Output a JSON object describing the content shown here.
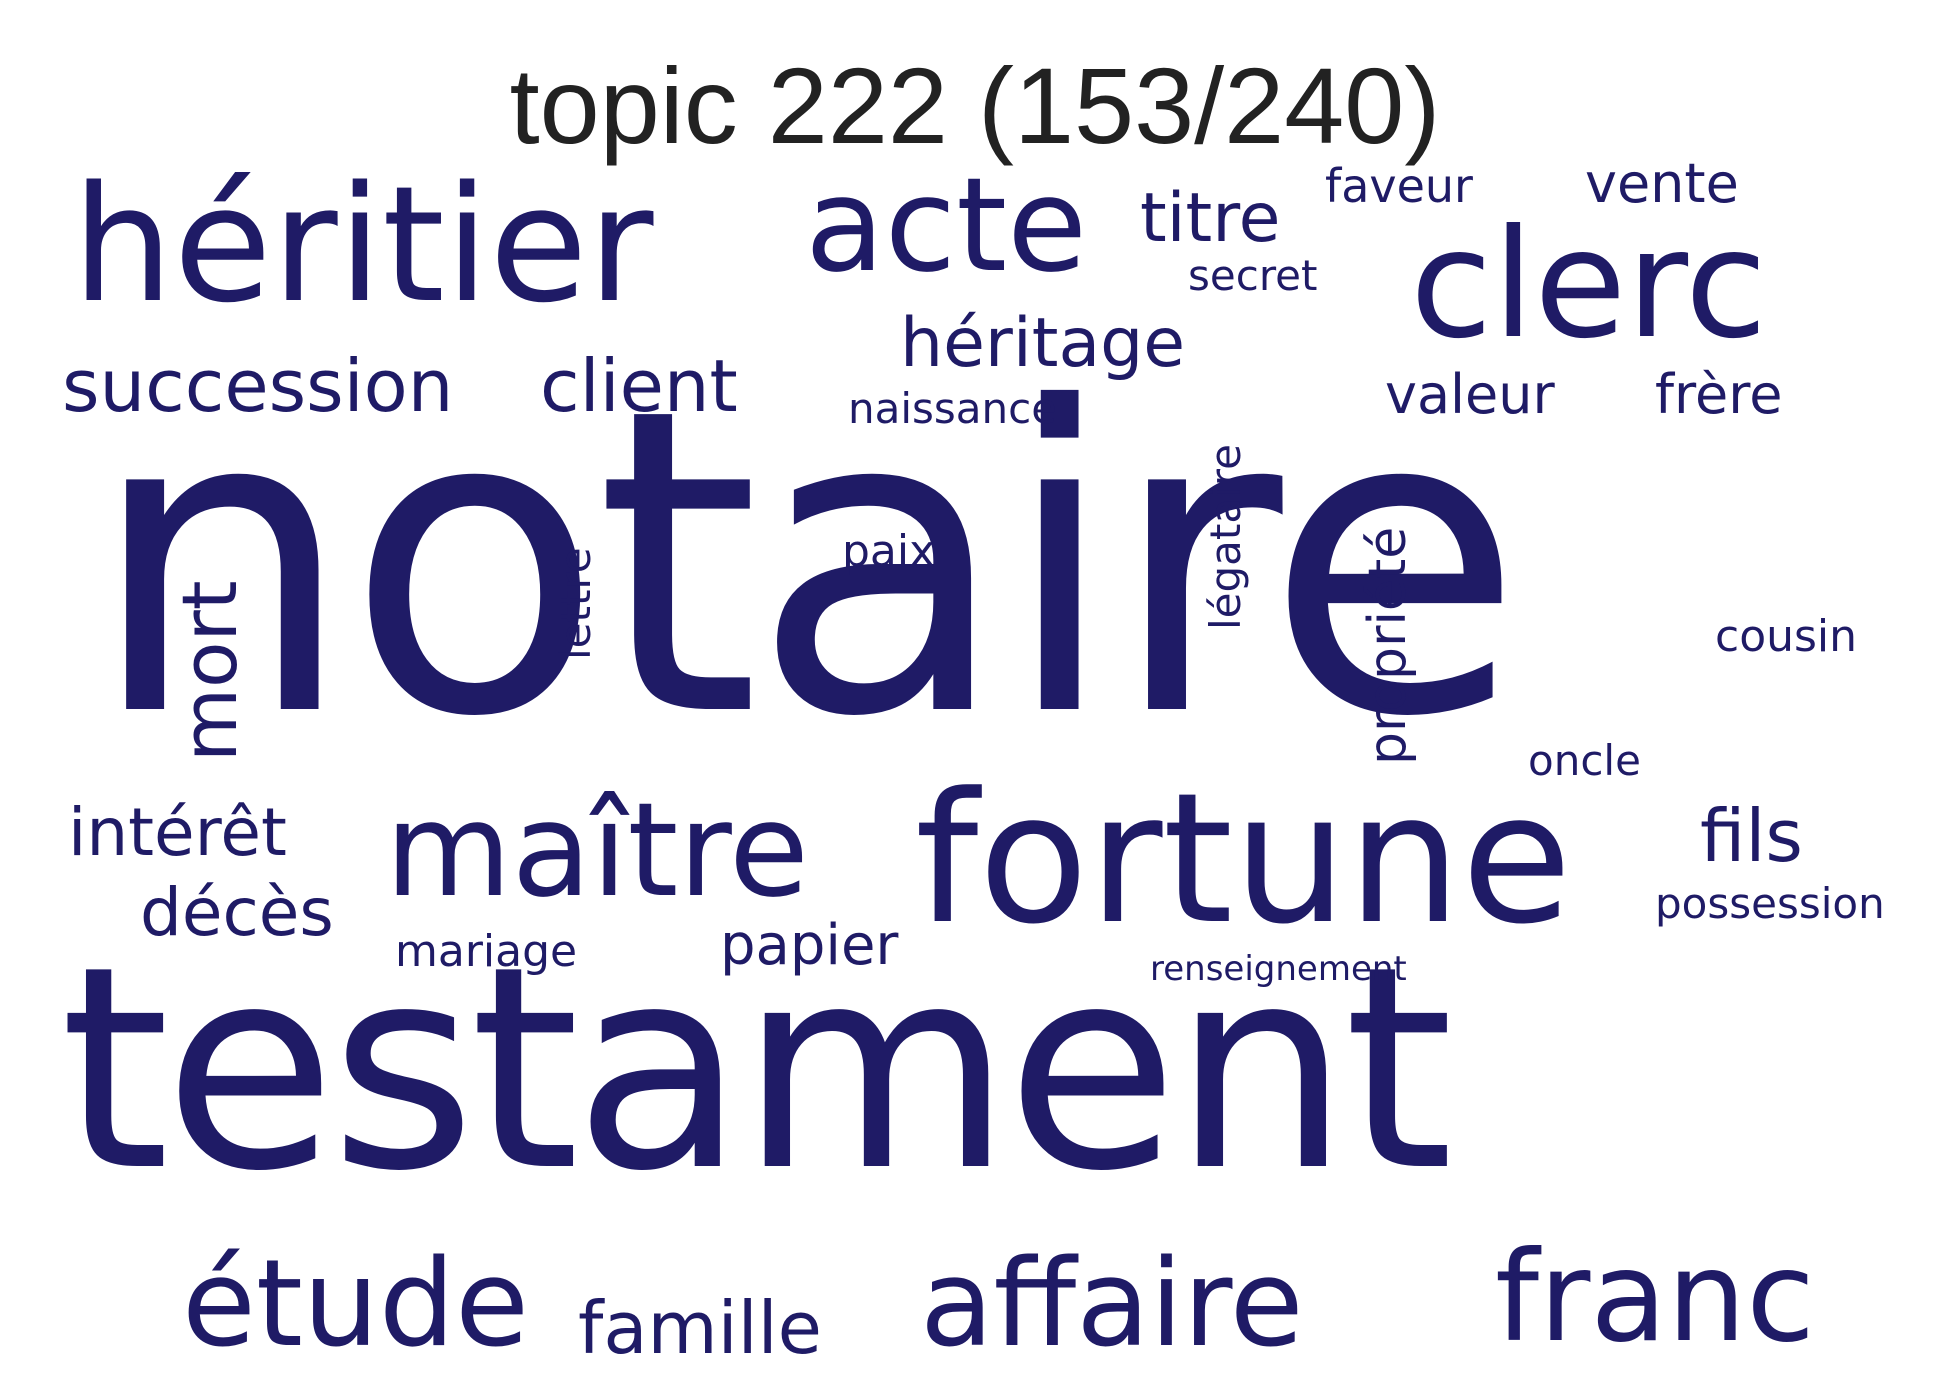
{
  "title": "topic 222 (153/240)",
  "word_color": "#1f1b66",
  "words": [
    "notaire",
    "testament",
    "fortune",
    "héritier",
    "clerc",
    "acte",
    "maître",
    "affaire",
    "franc",
    "étude",
    "succession",
    "client",
    "héritage",
    "titre",
    "famille",
    "mort",
    "intérêt",
    "décès",
    "fils",
    "papier",
    "propriété",
    "légataire",
    "valeur",
    "frère",
    "vente",
    "faveur",
    "secret",
    "naissance",
    "lettre",
    "paix",
    "cousin",
    "oncle",
    "possession",
    "mariage",
    "renseignement"
  ]
}
